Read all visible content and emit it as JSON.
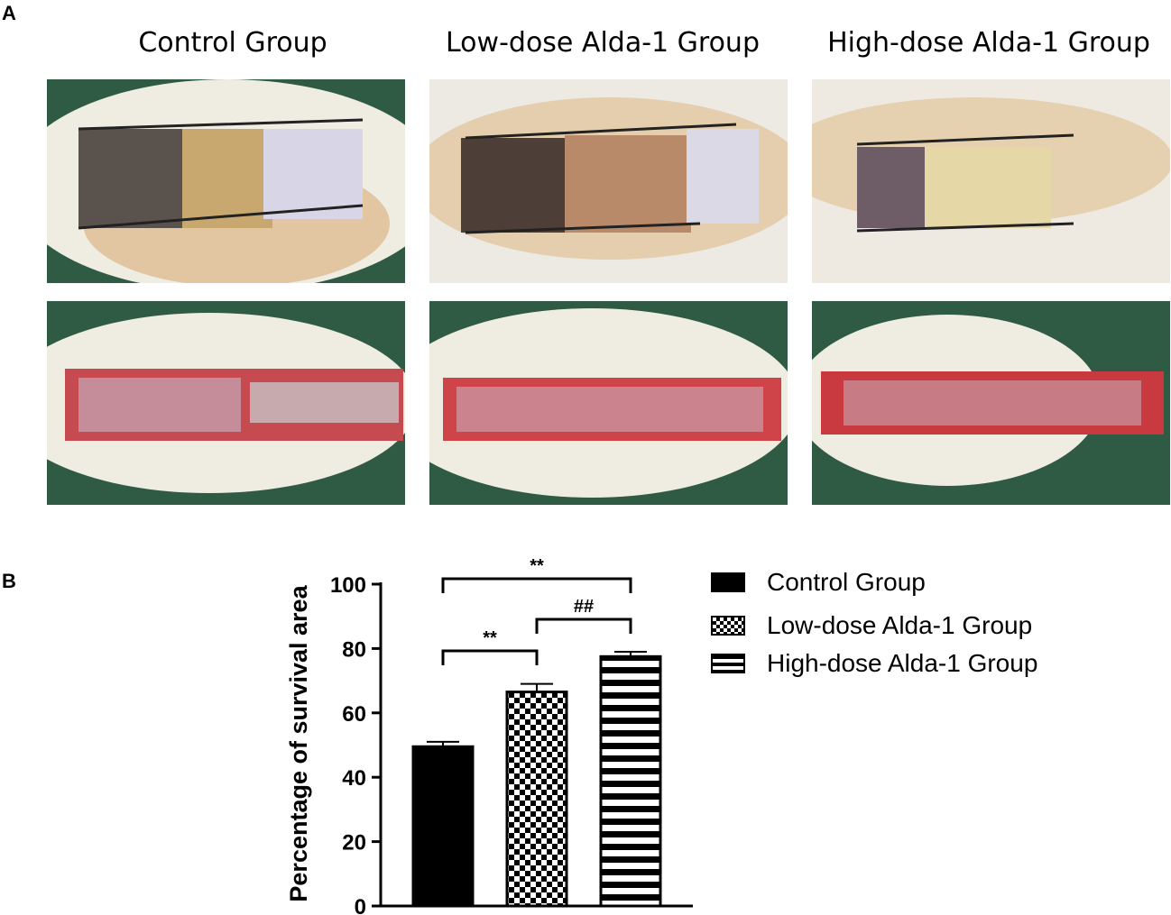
{
  "panel_a": {
    "letter": "A",
    "titles": [
      "Control Group",
      "Low-dose Alda-1 Group",
      "High-dose Alda-1 Group"
    ]
  },
  "panel_b": {
    "letter": "B"
  },
  "colors": {
    "green_drape": "#2f5a43",
    "fur": "#efece2",
    "wound": "#c23a3e",
    "bar": "#000000"
  },
  "chart_data": {
    "type": "bar",
    "categories": [
      "Control Group",
      "Low-dose Alda-1 Group",
      "High-dose Alda-1 Group"
    ],
    "values": [
      49.5,
      66.5,
      77.5
    ],
    "errors": [
      1.5,
      2.5,
      1.5
    ],
    "patterns": [
      "solid",
      "checker",
      "stripes"
    ],
    "ylabel": "Percentage of survival area",
    "ylim": [
      0,
      100
    ],
    "yticks": [
      0,
      20,
      40,
      60,
      80,
      100
    ],
    "significance": [
      {
        "from": 0,
        "to": 2,
        "label": "**",
        "level": 1
      },
      {
        "from": 1,
        "to": 2,
        "label": "##",
        "level": 2
      },
      {
        "from": 0,
        "to": 1,
        "label": "**",
        "level": 3
      }
    ],
    "legend": [
      "Control Group",
      "Low-dose Alda-1 Group",
      "High-dose Alda-1 Group"
    ],
    "legend_position": "right"
  }
}
